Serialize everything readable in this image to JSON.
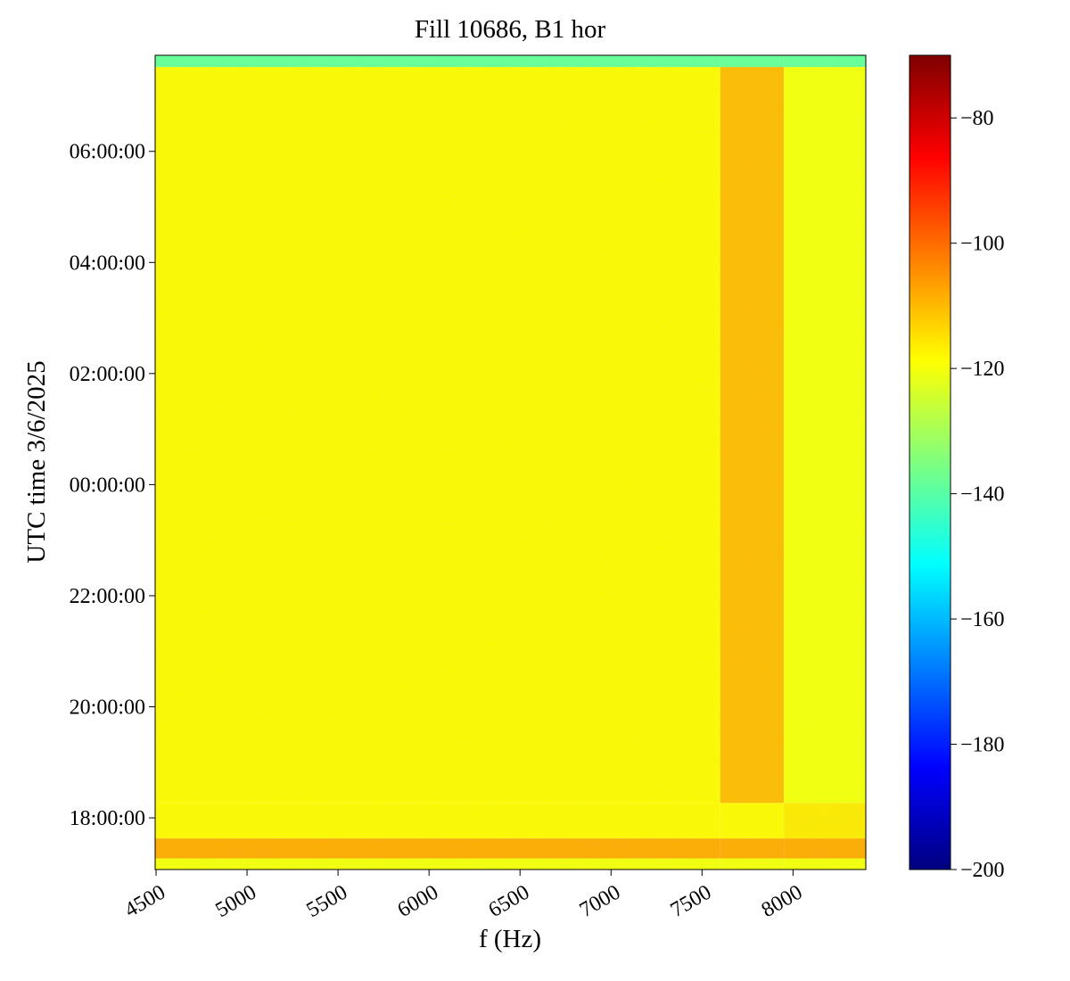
{
  "chart_data": {
    "type": "heatmap",
    "title": "Fill 10686, B1 hor",
    "x_label": "f (Hz)",
    "y_label": "UTC time 3/6/2025",
    "xlim": [
      4495,
      8400
    ],
    "xticks": [
      4500,
      5000,
      5500,
      6000,
      6500,
      7000,
      7500,
      8000
    ],
    "ylim": [
      17.07,
      31.73
    ],
    "yticks": [
      {
        "value": 18,
        "label": "18:00:00"
      },
      {
        "value": 20,
        "label": "20:00:00"
      },
      {
        "value": 22,
        "label": "22:00:00"
      },
      {
        "value": 24,
        "label": "00:00:00"
      },
      {
        "value": 26,
        "label": "02:00:00"
      },
      {
        "value": 28,
        "label": "04:00:00"
      },
      {
        "value": 30,
        "label": "06:00:00"
      }
    ],
    "x_edges": [
      4495,
      7600,
      7950,
      8400
    ],
    "y_edges": [
      17.07,
      17.27,
      17.63,
      18.27,
      31.52,
      31.73
    ],
    "z": [
      [
        -120,
        -120,
        -120
      ],
      [
        -108,
        -108,
        -108
      ],
      [
        -118,
        -118,
        -116
      ],
      [
        -118,
        -110,
        -120
      ],
      [
        -138,
        -138,
        -138
      ]
    ],
    "zlim": [
      -200,
      -70
    ],
    "zticks": [
      {
        "value": -80,
        "label": "−80"
      },
      {
        "value": -100,
        "label": "−100"
      },
      {
        "value": -120,
        "label": "−120"
      },
      {
        "value": -140,
        "label": "−140"
      },
      {
        "value": -160,
        "label": "−160"
      },
      {
        "value": -180,
        "label": "−180"
      },
      {
        "value": -200,
        "label": "−200"
      }
    ],
    "colormap": [
      "#00007f",
      "#0000ff",
      "#007fff",
      "#00ffff",
      "#7fff7f",
      "#ffff00",
      "#ff7f00",
      "#ff0000",
      "#7f0000"
    ]
  }
}
